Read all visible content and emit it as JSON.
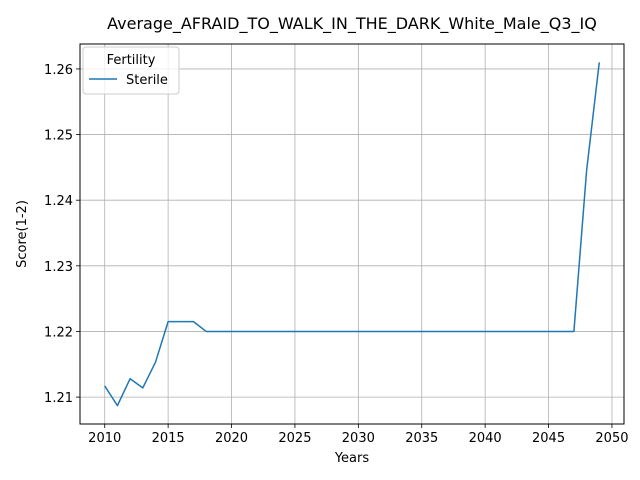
{
  "chart_data": {
    "type": "line",
    "title": "Average_AFRAID_TO_WALK_IN_THE_DARK_White_Male_Q3_IQ",
    "xlabel": "Years",
    "ylabel": "Score(1-2)",
    "xlim": [
      2008.05,
      2050.95
    ],
    "ylim": [
      1.2059,
      1.2638
    ],
    "xticks": [
      2010,
      2015,
      2020,
      2025,
      2030,
      2035,
      2040,
      2045,
      2050
    ],
    "xtick_labels": [
      "2010",
      "2015",
      "2020",
      "2025",
      "2030",
      "2035",
      "2040",
      "2045",
      "2050"
    ],
    "yticks": [
      1.21,
      1.22,
      1.23,
      1.24,
      1.25,
      1.26
    ],
    "ytick_labels": [
      "1.21",
      "1.22",
      "1.23",
      "1.24",
      "1.25",
      "1.26"
    ],
    "grid": true,
    "legend": {
      "title": "Fertility",
      "placement": "top-left"
    },
    "x": [
      2010,
      2011,
      2012,
      2013,
      2014,
      2015,
      2016,
      2017,
      2018,
      2019,
      2020,
      2021,
      2022,
      2023,
      2024,
      2025,
      2026,
      2027,
      2028,
      2029,
      2030,
      2031,
      2032,
      2033,
      2034,
      2035,
      2036,
      2037,
      2038,
      2039,
      2040,
      2041,
      2042,
      2043,
      2044,
      2045,
      2046,
      2047,
      2048,
      2049
    ],
    "series": [
      {
        "name": "Sterile",
        "color": "#1f77b4",
        "values": [
          1.2117,
          1.2087,
          1.2128,
          1.2114,
          1.2153,
          1.2215,
          1.2215,
          1.2215,
          1.22,
          1.22,
          1.22,
          1.22,
          1.22,
          1.22,
          1.22,
          1.22,
          1.22,
          1.22,
          1.22,
          1.22,
          1.22,
          1.22,
          1.22,
          1.22,
          1.22,
          1.22,
          1.22,
          1.22,
          1.22,
          1.22,
          1.22,
          1.22,
          1.22,
          1.22,
          1.22,
          1.22,
          1.22,
          1.22,
          1.2445,
          1.261
        ]
      }
    ]
  }
}
